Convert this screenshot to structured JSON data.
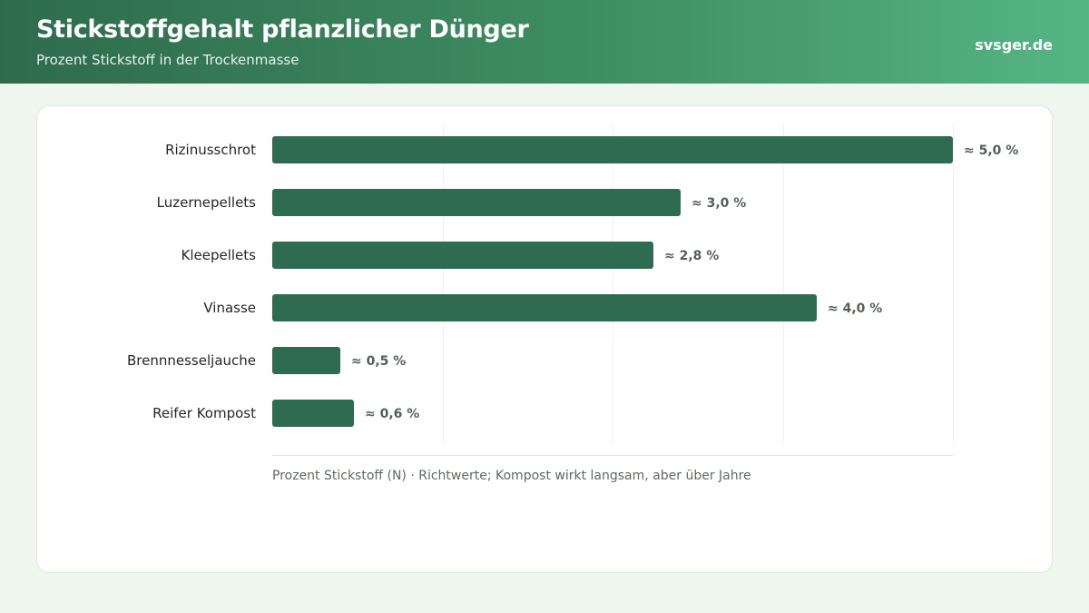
{
  "header": {
    "title": "Stickstoffgehalt pflanzlicher Dünger",
    "subtitle": "Prozent Stickstoff in der Trockenmasse",
    "brand": "svsger.de"
  },
  "colors": {
    "bar": "#2f6b50",
    "header_start": "#2e6b4d",
    "header_end": "#55b585",
    "background": "#eef6ee"
  },
  "chart_data": {
    "type": "bar",
    "orientation": "horizontal",
    "categories": [
      "Rizinusschrot",
      "Luzernepellets",
      "Kleepellets",
      "Vinasse",
      "Brennnesseljauche",
      "Reifer Kompost"
    ],
    "values": [
      5.0,
      3.0,
      2.8,
      4.0,
      0.5,
      0.6
    ],
    "value_labels": [
      "≈ 5,0 %",
      "≈ 3,0 %",
      "≈ 2,8 %",
      "≈ 4,0 %",
      "≈ 0,5 %",
      "≈ 0,6 %"
    ],
    "xlim": [
      0,
      5
    ],
    "grid": true,
    "xlabel": "Prozent Stickstoff (N) · Richtwerte; Kompost wirkt langsam, aber über Jahre"
  }
}
